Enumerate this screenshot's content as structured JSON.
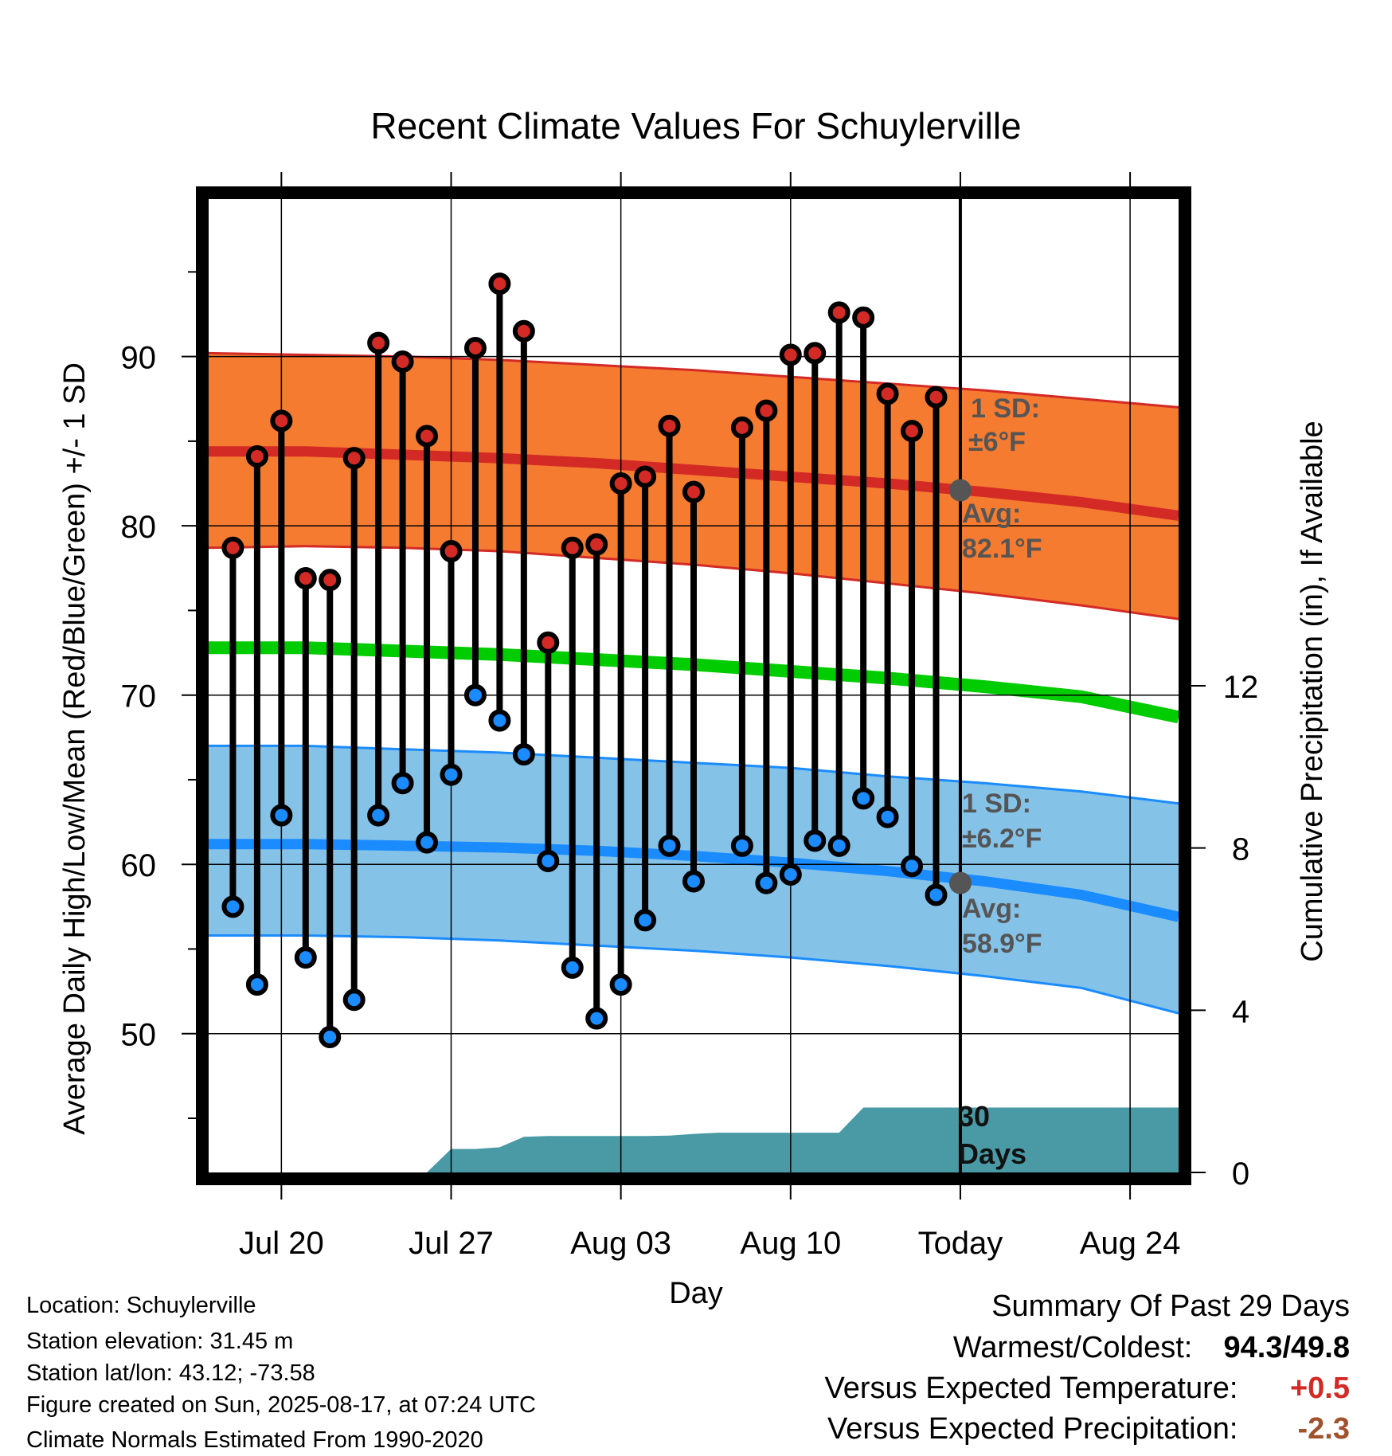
{
  "chart_data": {
    "type": "line",
    "title": "Recent Climate Values For Schuylerville",
    "xlabel": "Day",
    "ylabel": "Average Daily High/Low/Mean (Red/Blue/Green) +/- 1 SD",
    "y2label": "Cumulative Precipitation (in), If Available",
    "xticks": [
      "Jul 20",
      "Jul 27",
      "Aug 03",
      "Aug 10",
      "Today",
      "Aug 24"
    ],
    "yticks": [
      50,
      60,
      70,
      80,
      90
    ],
    "y2ticks": [
      0,
      4,
      8,
      12
    ],
    "ylim": [
      41.8,
      99.3
    ],
    "y2lim": [
      0,
      24
    ],
    "x_days_range": [
      "Jul 17",
      "Aug 26"
    ],
    "grid": true,
    "daily": {
      "dates": [
        "Jul 18",
        "Jul 19",
        "Jul 20",
        "Jul 21",
        "Jul 22",
        "Jul 23",
        "Jul 24",
        "Jul 25",
        "Jul 26",
        "Jul 27",
        "Jul 28",
        "Jul 29",
        "Jul 30",
        "Jul 31",
        "Aug 01",
        "Aug 02",
        "Aug 03",
        "Aug 04",
        "Aug 05",
        "Aug 06",
        "Aug 07",
        "Aug 08",
        "Aug 09",
        "Aug 10",
        "Aug 11",
        "Aug 12",
        "Aug 13",
        "Aug 14",
        "Aug 15",
        "Aug 16"
      ],
      "highs": [
        78.7,
        84.1,
        86.2,
        76.9,
        76.8,
        84.0,
        90.8,
        89.7,
        85.3,
        78.5,
        90.5,
        94.3,
        91.5,
        73.1,
        78.7,
        78.9,
        82.5,
        82.9,
        85.9,
        82.0,
        null,
        85.8,
        86.8,
        90.1,
        90.2,
        92.6,
        92.3,
        87.8,
        85.6,
        87.6
      ],
      "lows": [
        57.5,
        52.9,
        62.9,
        54.5,
        49.8,
        52.0,
        62.9,
        64.8,
        61.3,
        65.3,
        70.0,
        68.5,
        66.5,
        60.2,
        53.9,
        50.9,
        52.9,
        56.7,
        61.1,
        59.0,
        null,
        61.1,
        58.9,
        59.4,
        61.4,
        61.1,
        63.9,
        62.8,
        59.9,
        58.2
      ]
    },
    "normals": {
      "dates": [
        "Jul 17",
        "Jul 21",
        "Jul 25",
        "Jul 29",
        "Aug 02",
        "Aug 06",
        "Aug 10",
        "Aug 14",
        "Aug 18",
        "Aug 22",
        "Aug 26"
      ],
      "avg_high": [
        84.4,
        84.4,
        84.2,
        84.0,
        83.7,
        83.3,
        82.9,
        82.5,
        82.0,
        81.4,
        80.6
      ],
      "high_upper": [
        90.2,
        90.1,
        90.0,
        89.8,
        89.5,
        89.2,
        88.8,
        88.4,
        88.0,
        87.5,
        87.0
      ],
      "high_lower": [
        78.7,
        78.8,
        78.7,
        78.5,
        78.1,
        77.7,
        77.2,
        76.6,
        76.0,
        75.3,
        74.5
      ],
      "avg_mean": [
        72.8,
        72.8,
        72.6,
        72.4,
        72.1,
        71.8,
        71.4,
        71.0,
        70.5,
        69.9,
        68.7
      ],
      "avg_low": [
        61.2,
        61.2,
        61.1,
        61.0,
        60.8,
        60.5,
        60.1,
        59.6,
        59.0,
        58.2,
        56.9
      ],
      "low_upper": [
        67.0,
        67.0,
        66.8,
        66.6,
        66.3,
        66.0,
        65.7,
        65.2,
        64.8,
        64.3,
        63.6
      ],
      "low_lower": [
        55.8,
        55.8,
        55.7,
        55.5,
        55.2,
        54.9,
        54.5,
        54.0,
        53.4,
        52.7,
        51.2
      ]
    },
    "today": {
      "date": "Aug 17",
      "avg_high": 82.1,
      "avg_low": 58.9
    },
    "precipitation": {
      "dates": [
        "Jul 17",
        "Jul 23",
        "Jul 24",
        "Jul 25",
        "Jul 26",
        "Jul 27",
        "Jul 28",
        "Jul 29",
        "Jul 30",
        "Jul 31",
        "Aug 01",
        "Aug 02",
        "Aug 03",
        "Aug 04",
        "Aug 05",
        "Aug 06",
        "Aug 07",
        "Aug 08",
        "Aug 09",
        "Aug 10",
        "Aug 11",
        "Aug 12",
        "Aug 13",
        "Aug 14",
        "Aug 15",
        "Aug 16",
        "Aug 26"
      ],
      "cumulative": [
        0.0,
        0.0,
        0.0,
        0.0,
        0.0,
        0.58,
        0.58,
        0.62,
        0.88,
        0.9,
        0.9,
        0.9,
        0.9,
        0.9,
        0.91,
        0.95,
        0.98,
        0.98,
        0.98,
        0.98,
        0.98,
        0.98,
        1.6,
        1.6,
        1.6,
        1.6,
        1.6
      ]
    },
    "annotations": {
      "high_sd_label": "1 SD:",
      "high_sd_value": "±6°F",
      "high_avg_label": "Avg:",
      "high_avg_value": "82.1°F",
      "low_sd_label": "1 SD:",
      "low_sd_value": "±6.2°F",
      "low_avg_label": "Avg:",
      "low_avg_value": "58.9°F",
      "period_line1": "30",
      "period_line2": "Days"
    },
    "colors": {
      "high_band": "#f47b30",
      "high_line": "#d42a26",
      "mean_line": "#00cc00",
      "low_band": "#85c2e8",
      "low_line": "#1a8cff",
      "precip": "#4a9aa5",
      "high_dot": "#d42a26",
      "low_dot": "#1a8cff",
      "today_dot": "#555555",
      "annotation_text": "#555555"
    }
  },
  "footer": {
    "location": "Location: Schuylerville",
    "elevation": "Station elevation: 31.45 m",
    "latlon": "Station lat/lon: 43.12; -73.58",
    "created": "Figure created on Sun, 2025-08-17, at 07:24 UTC",
    "normals": "Climate Normals Estimated From 1990-2020"
  },
  "summary": {
    "title": "Summary Of Past 29 Days",
    "warm_cold_label": "Warmest/Coldest:",
    "warmest": "94.3",
    "slash": "/",
    "coldest": "49.8",
    "temp_label": "Versus Expected Temperature:",
    "temp_value": "+0.5",
    "precip_label": "Versus Expected Precipitation:",
    "precip_value": "-2.3",
    "temp_color": "#d42a26",
    "precip_color": "#a0522d"
  }
}
